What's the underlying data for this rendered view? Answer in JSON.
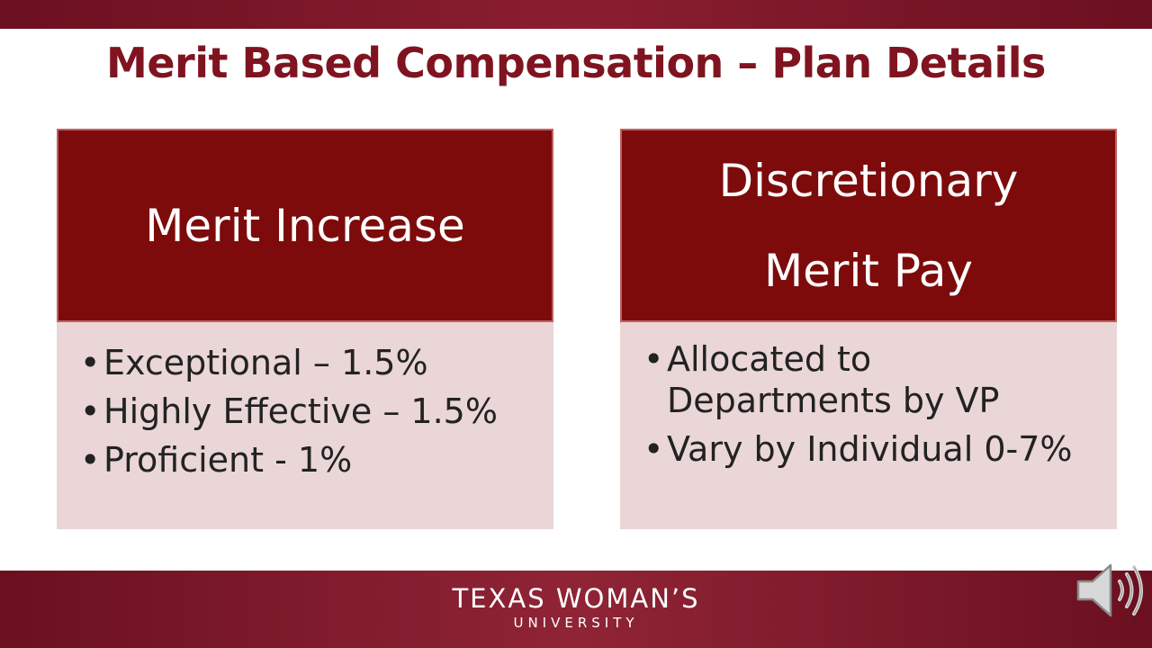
{
  "slide": {
    "title": "Merit Based Compensation – Plan Details"
  },
  "cards": {
    "left": {
      "heading_lines": [
        "Merit Increase"
      ],
      "bullets": [
        "Exceptional – 1.5%",
        "Highly Effective – 1.5%",
        "Proficient - 1%"
      ]
    },
    "right": {
      "heading_lines": [
        "Discretionary",
        "Merit Pay"
      ],
      "bullets": [
        "Allocated to Departments by VP",
        "Vary by Individual 0-7%"
      ]
    }
  },
  "footer": {
    "logo_main": "TEXAS WOMAN’S",
    "logo_sub": "UNIVERSITY"
  },
  "icons": {
    "audio": "speaker-icon"
  },
  "colors": {
    "brand_maroon": "#7d0b0b",
    "title_text": "#7f1420",
    "card_body_bg": "#ead6d6"
  }
}
